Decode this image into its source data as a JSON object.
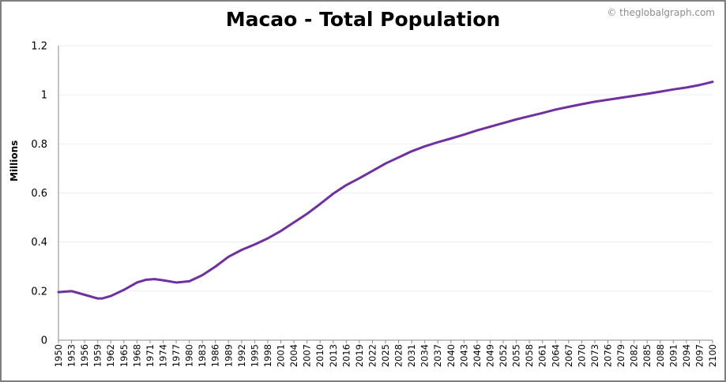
{
  "chart_data": {
    "type": "line",
    "title": "Macao - Total Population",
    "credit": "© theglobalgraph.com",
    "ylabel": "Millions",
    "xlabel": "",
    "ylim": [
      0,
      1.2
    ],
    "xlim": [
      1950,
      2100
    ],
    "y_ticks": [
      "0",
      "0.2",
      "0.4",
      "0.6",
      "0.8",
      "1",
      "1.2"
    ],
    "x_ticks": [
      "1950",
      "1953",
      "1956",
      "1959",
      "1962",
      "1965",
      "1968",
      "1971",
      "1974",
      "1977",
      "1980",
      "1983",
      "1986",
      "1989",
      "1992",
      "1995",
      "1998",
      "2001",
      "2004",
      "2007",
      "2010",
      "2013",
      "2016",
      "2019",
      "2022",
      "2025",
      "2028",
      "2031",
      "2034",
      "2037",
      "2040",
      "2043",
      "2046",
      "2049",
      "2052",
      "2055",
      "2058",
      "2061",
      "2064",
      "2067",
      "2070",
      "2073",
      "2076",
      "2079",
      "2082",
      "2085",
      "2088",
      "2091",
      "2094",
      "2097",
      "2100"
    ],
    "grid": true,
    "line_color": "#7030a0",
    "series": [
      {
        "x": [
          1950,
          1953,
          1956,
          1959,
          1960,
          1962,
          1965,
          1968,
          1970,
          1972,
          1974,
          1977,
          1980,
          1983,
          1986,
          1989,
          1992,
          1995,
          1998,
          2001,
          2004,
          2007,
          2010,
          2013,
          2016,
          2019,
          2022,
          2025,
          2028,
          2031,
          2034,
          2037,
          2040,
          2043,
          2046,
          2049,
          2052,
          2055,
          2058,
          2061,
          2064,
          2067,
          2070,
          2073,
          2076,
          2079,
          2082,
          2085,
          2088,
          2091,
          2094,
          2097,
          2100
        ],
        "values": [
          0.196,
          0.2,
          0.185,
          0.17,
          0.17,
          0.18,
          0.205,
          0.235,
          0.246,
          0.249,
          0.244,
          0.235,
          0.24,
          0.265,
          0.3,
          0.34,
          0.368,
          0.39,
          0.415,
          0.445,
          0.48,
          0.515,
          0.555,
          0.597,
          0.632,
          0.66,
          0.69,
          0.72,
          0.745,
          0.77,
          0.79,
          0.807,
          0.822,
          0.838,
          0.855,
          0.87,
          0.885,
          0.9,
          0.913,
          0.926,
          0.94,
          0.951,
          0.962,
          0.972,
          0.98,
          0.988,
          0.996,
          1.004,
          1.013,
          1.022,
          1.03,
          1.04,
          1.053
        ]
      }
    ]
  }
}
